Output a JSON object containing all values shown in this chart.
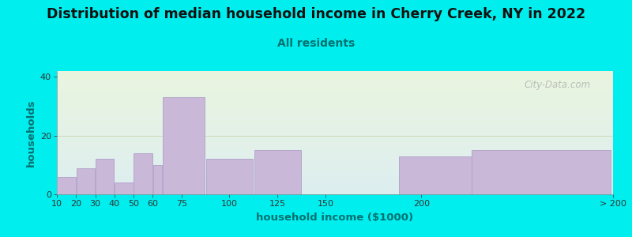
{
  "title": "Distribution of median household income in Cherry Creek, NY in 2022",
  "subtitle": "All residents",
  "xlabel": "household income ($1000)",
  "ylabel": "households",
  "title_fontsize": 12.5,
  "subtitle_fontsize": 10,
  "axis_label_fontsize": 9.5,
  "background_color": "#00EEEE",
  "bar_color": "#c9b8d8",
  "bar_edge_color": "#b0a0c8",
  "categories": [
    "10",
    "20",
    "30",
    "40",
    "50",
    "60",
    "75",
    "100",
    "125",
    "150",
    "200",
    "> 200"
  ],
  "bar_centers": [
    15,
    25,
    35,
    45,
    55,
    62.5,
    76.25,
    100,
    125,
    162.5,
    212.5,
    262.5
  ],
  "bar_widths": [
    10,
    10,
    10,
    10,
    10,
    5,
    22.5,
    25,
    25,
    37.5,
    50,
    75
  ],
  "bar_heights": [
    6,
    9,
    12,
    4,
    14,
    10,
    33,
    12,
    15,
    0,
    13,
    15
  ],
  "tick_positions": [
    10,
    20,
    30,
    40,
    50,
    60,
    75,
    100,
    125,
    150,
    200,
    300
  ],
  "tick_labels": [
    "10",
    "20",
    "30",
    "40",
    "50",
    "60",
    "75",
    "100",
    "125",
    "150",
    "200",
    "> 200"
  ],
  "yticks": [
    0,
    20,
    40
  ],
  "xlim": [
    10,
    300
  ],
  "ylim": [
    0,
    42
  ],
  "watermark_text": "City-Data.com",
  "grid_line_y": 20,
  "grid_color": "#d0ddc0",
  "title_color": "#111111",
  "subtitle_color": "#007070",
  "tick_color": "#333333",
  "plot_bg_top": "#eaf5df",
  "plot_bg_bottom": "#ddeef0"
}
